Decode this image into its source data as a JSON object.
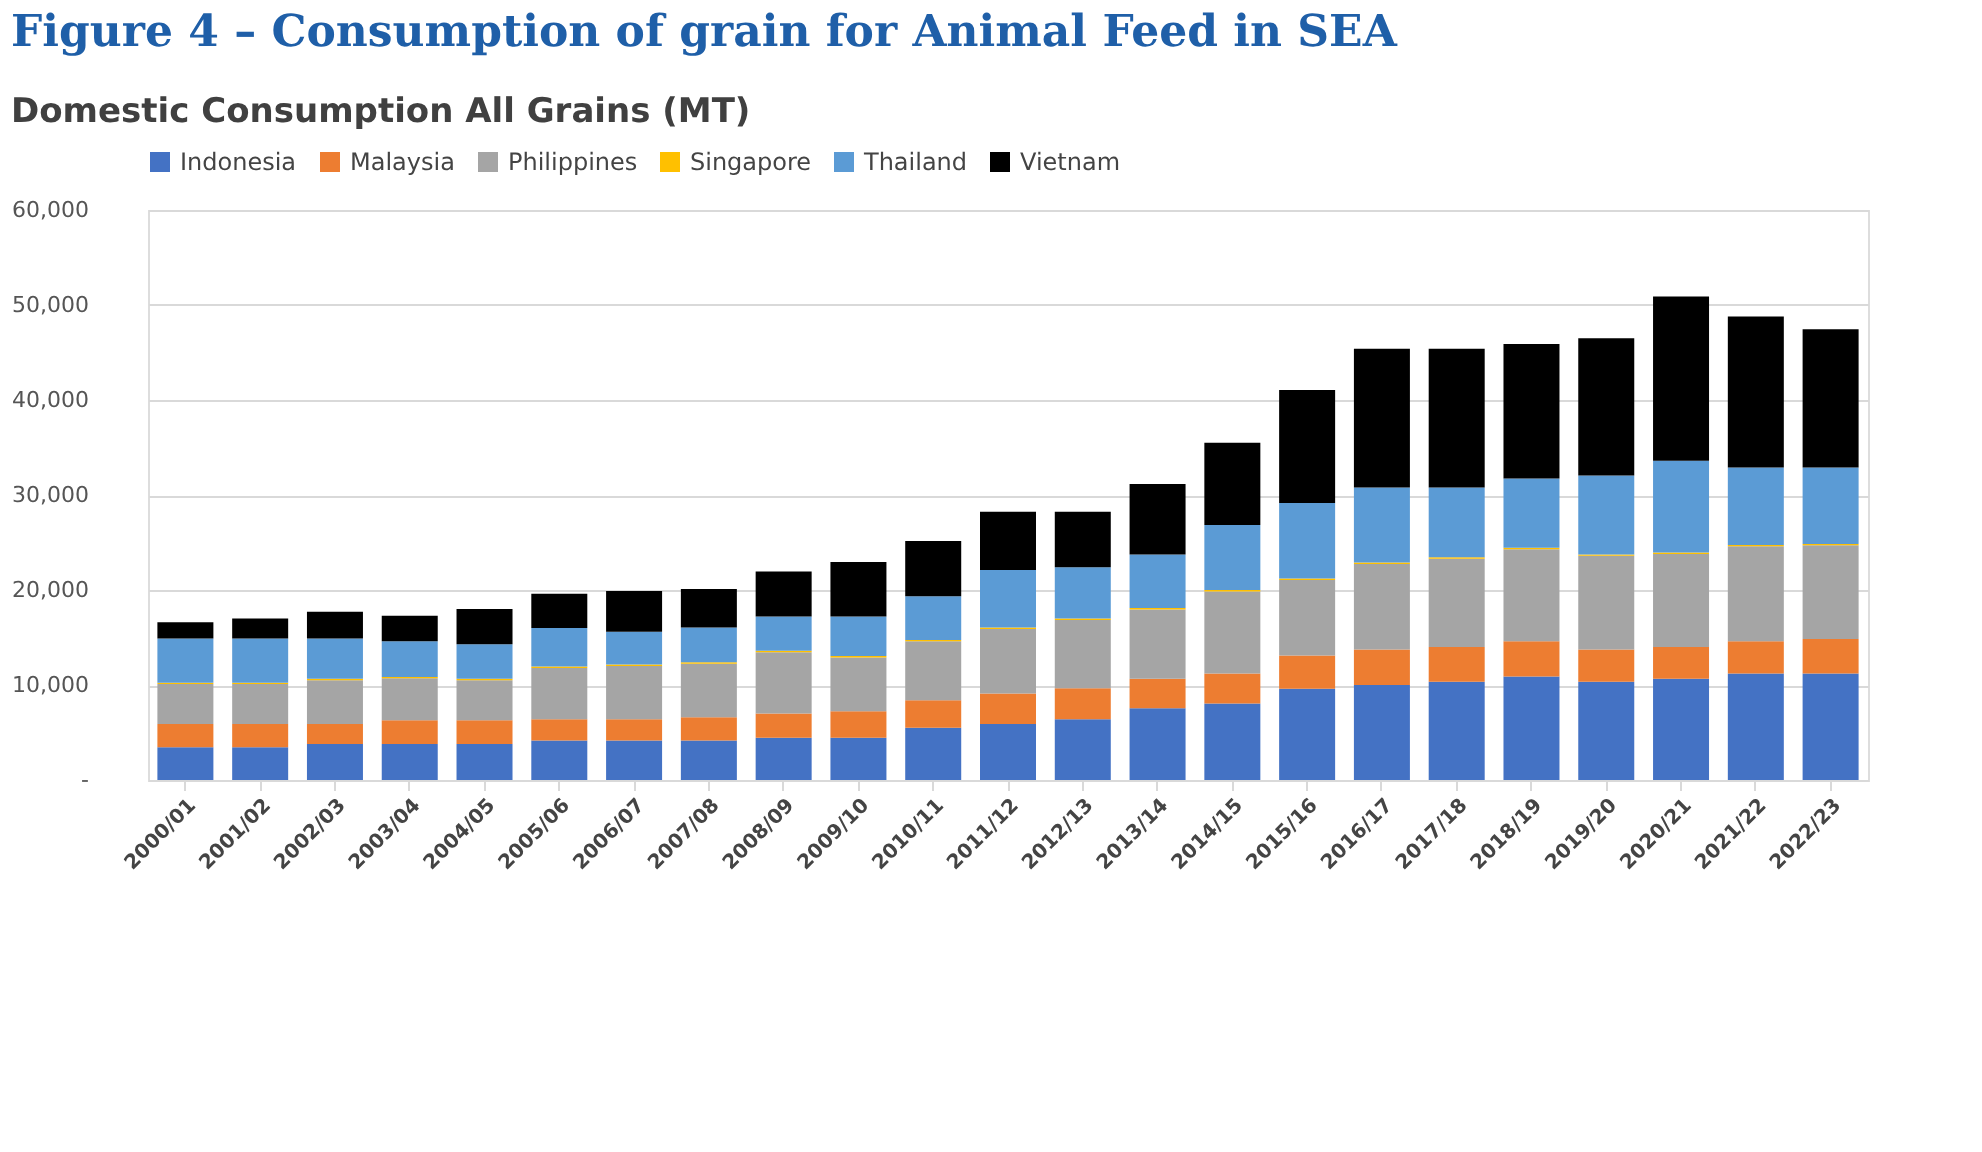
{
  "chart_data": {
    "type": "bar",
    "stacked": true,
    "title": "Figure 4 – Consumption of grain for Animal Feed  in SEA",
    "subtitle": "Domestic Consumption All Grains (MT)",
    "categories": [
      "2000/01",
      "2001/02",
      "2002/03",
      "2003/04",
      "2004/05",
      "2005/06",
      "2006/07",
      "2007/08",
      "2008/09",
      "2009/10",
      "2010/11",
      "2011/12",
      "2012/13",
      "2013/14",
      "2014/15",
      "2015/16",
      "2016/17",
      "2017/18",
      "2018/19",
      "2019/20",
      "2020/21",
      "2021/22",
      "2022/23"
    ],
    "series": [
      {
        "name": "Indonesia",
        "color": "#4472c4",
        "values": [
          3450,
          3450,
          3800,
          3800,
          3800,
          4150,
          4150,
          4150,
          4450,
          4450,
          5500,
          5900,
          6400,
          7550,
          8050,
          9600,
          10000,
          10350,
          10900,
          10350,
          10650,
          11200,
          11200
        ]
      },
      {
        "name": "Malaysia",
        "color": "#ed7d31",
        "values": [
          2450,
          2450,
          2100,
          2500,
          2500,
          2250,
          2250,
          2450,
          2550,
          2800,
          2900,
          3200,
          3250,
          3100,
          3150,
          3500,
          3750,
          3650,
          3700,
          3400,
          3350,
          3400,
          3650
        ]
      },
      {
        "name": "Philippines",
        "color": "#a5a5a5",
        "values": [
          4200,
          4200,
          4600,
          4400,
          4200,
          5400,
          5600,
          5650,
          6450,
          5650,
          6200,
          6800,
          7200,
          7300,
          8650,
          7950,
          9000,
          9300,
          9700,
          9850,
          9800,
          10000,
          9850
        ]
      },
      {
        "name": "Singapore",
        "color": "#ffc000",
        "values": [
          150,
          150,
          150,
          150,
          150,
          150,
          150,
          150,
          150,
          150,
          150,
          150,
          150,
          150,
          150,
          150,
          150,
          150,
          150,
          150,
          150,
          150,
          150
        ]
      },
      {
        "name": "Thailand",
        "color": "#5b9bd5",
        "values": [
          4650,
          4650,
          4250,
          3750,
          3650,
          4050,
          3450,
          3650,
          3600,
          4150,
          4600,
          6050,
          5400,
          5650,
          6850,
          7950,
          7900,
          7350,
          7300,
          8300,
          9650,
          8150,
          8050
        ]
      },
      {
        "name": "Vietnam",
        "color": "#000000",
        "values": [
          1700,
          2100,
          2800,
          2700,
          3700,
          3600,
          4300,
          4050,
          4750,
          5750,
          5800,
          6150,
          5850,
          7400,
          8650,
          11900,
          14600,
          14600,
          14150,
          14450,
          17300,
          15900,
          14550
        ]
      }
    ],
    "ylim": [
      0,
      60000
    ],
    "yticks": [
      {
        "value": 0,
        "label": "-"
      },
      {
        "value": 10000,
        "label": "10,000"
      },
      {
        "value": 20000,
        "label": "20,000"
      },
      {
        "value": 30000,
        "label": "30,000"
      },
      {
        "value": 40000,
        "label": "40,000"
      },
      {
        "value": 50000,
        "label": "50,000"
      },
      {
        "value": 60000,
        "label": "60,000"
      }
    ],
    "grid": "y",
    "legend": "top"
  }
}
